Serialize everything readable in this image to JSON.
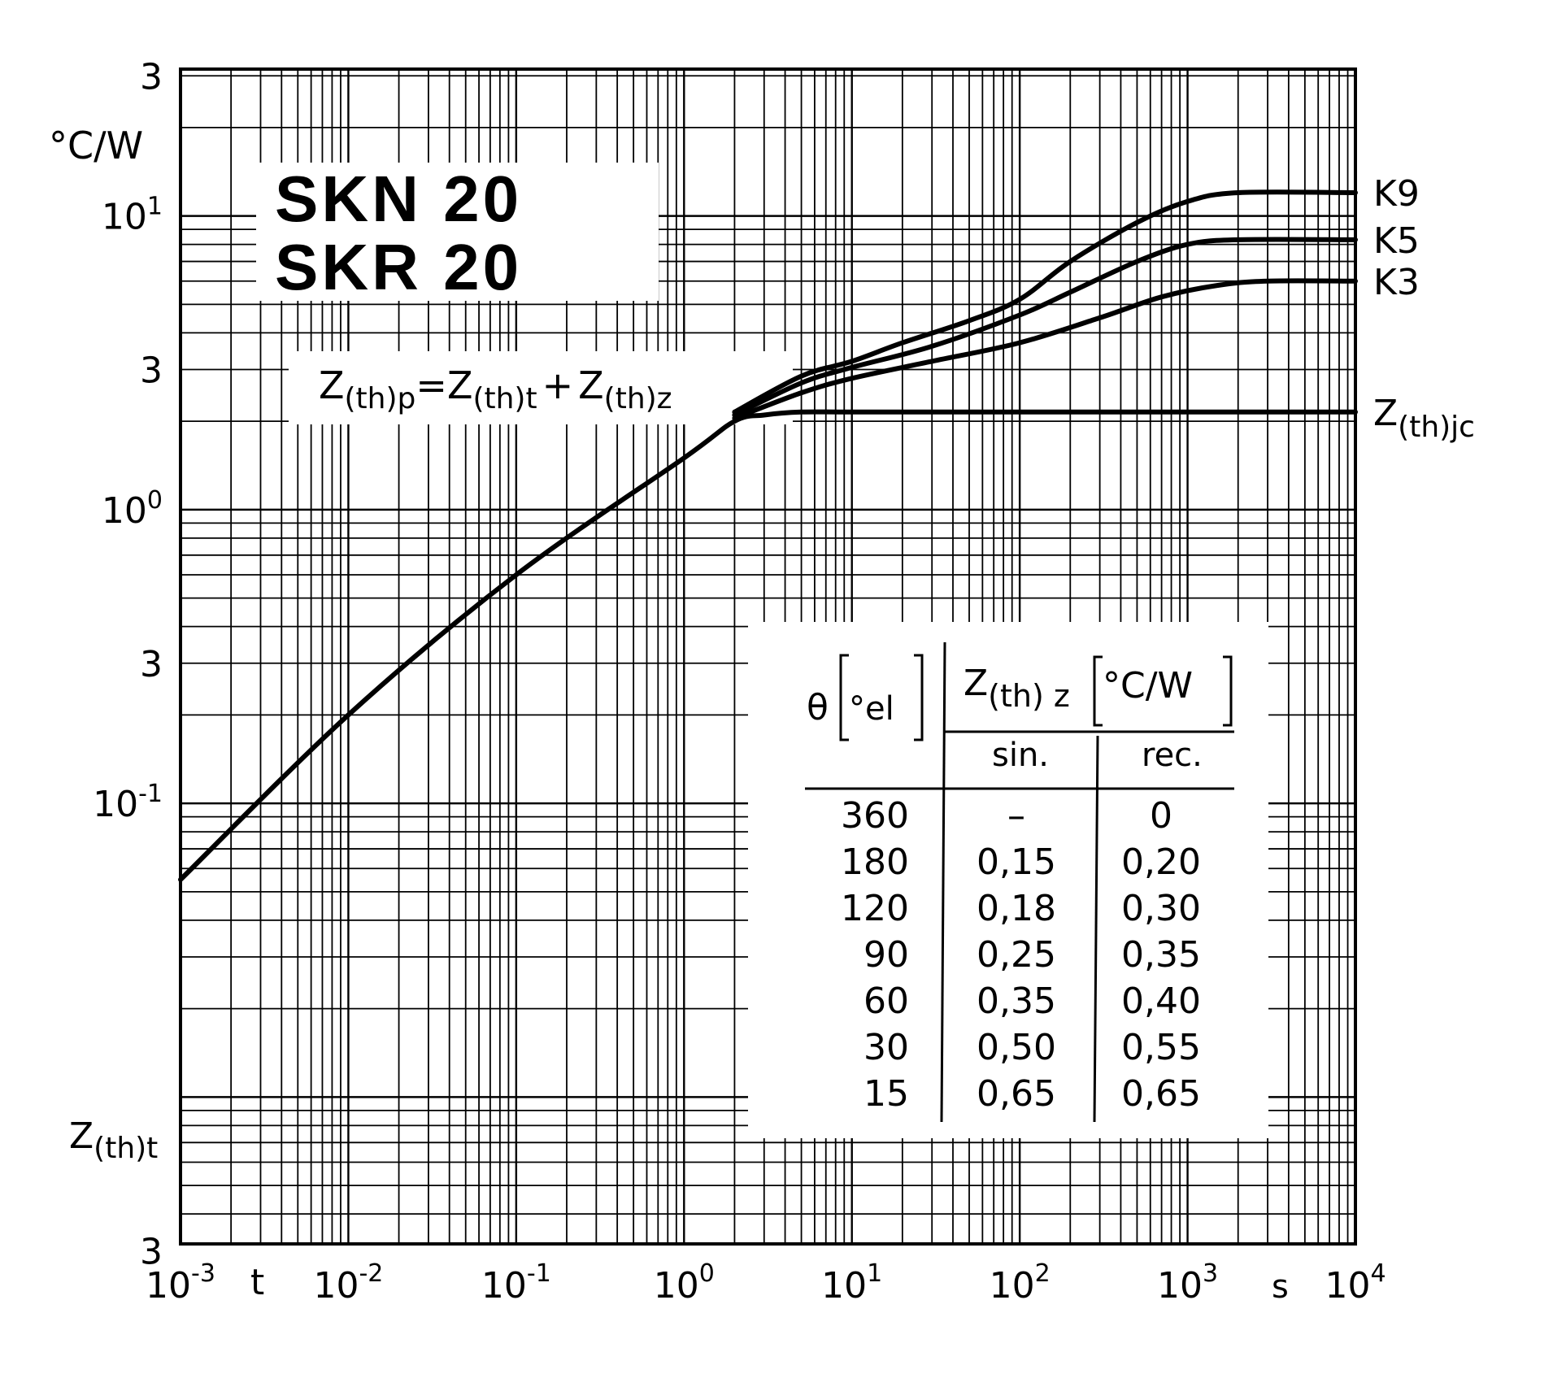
{
  "chart_data": {
    "type": "line",
    "title": [
      "SKN 20",
      "SKR 20"
    ],
    "formula": {
      "a": "Z",
      "a_sub": "(th)p",
      "eq": "=",
      "b": "Z",
      "b_sub": "(th)t",
      "plus": "+",
      "c": "Z",
      "c_sub": "(th)z"
    },
    "y_unit": "°C/W",
    "y_axis_label": {
      "main": "Z",
      "sub": "(th)t"
    },
    "x_axis_label": "t",
    "x_unit": "s",
    "x_scale": "log",
    "y_scale": "log",
    "xlim": [
      0.001,
      10000
    ],
    "ylim": [
      0.003,
      30
    ],
    "grid": true,
    "x_ticks": [
      {
        "base": "10",
        "exp": "-3",
        "value": 0.001
      },
      {
        "base": "10",
        "exp": "-2",
        "value": 0.01
      },
      {
        "base": "10",
        "exp": "-1",
        "value": 0.1
      },
      {
        "base": "10",
        "exp": "0",
        "value": 1
      },
      {
        "base": "10",
        "exp": "1",
        "value": 10
      },
      {
        "base": "10",
        "exp": "2",
        "value": 100
      },
      {
        "base": "10",
        "exp": "3",
        "value": 1000
      },
      {
        "base": "10",
        "exp": "4",
        "value": 10000
      }
    ],
    "y_ticks": [
      {
        "base": "3",
        "exp": "",
        "value": 30
      },
      {
        "base": "10",
        "exp": "1",
        "value": 10
      },
      {
        "base": "3",
        "exp": "",
        "value": 3
      },
      {
        "base": "10",
        "exp": "0",
        "value": 1
      },
      {
        "base": "3",
        "exp": "",
        "value": 0.3
      },
      {
        "base": "10",
        "exp": "-1",
        "value": 0.1
      },
      {
        "base": "3",
        "exp": "",
        "value": 0.003
      }
    ],
    "series": [
      {
        "name": "Z",
        "name_sub": "(th)jc",
        "x": [
          0.001,
          0.01,
          0.1,
          1,
          2,
          3,
          5,
          10,
          100,
          1000,
          10000
        ],
        "y": [
          0.055,
          0.2,
          0.6,
          1.5,
          2.0,
          2.1,
          2.15,
          2.15,
          2.15,
          2.15,
          2.15
        ]
      },
      {
        "name": "K3",
        "x": [
          2,
          5,
          10,
          30,
          100,
          300,
          700,
          1500,
          3000,
          10000
        ],
        "y": [
          2.05,
          2.5,
          2.8,
          3.2,
          3.7,
          4.5,
          5.3,
          5.8,
          6.0,
          6.0
        ]
      },
      {
        "name": "K5",
        "x": [
          2,
          5,
          10,
          30,
          100,
          200,
          500,
          1000,
          2000,
          10000
        ],
        "y": [
          2.1,
          2.7,
          3.05,
          3.6,
          4.6,
          5.5,
          7.0,
          8.0,
          8.3,
          8.3
        ]
      },
      {
        "name": "K9",
        "x": [
          2,
          5,
          10,
          20,
          50,
          100,
          200,
          500,
          1000,
          2000,
          10000
        ],
        "y": [
          2.15,
          2.85,
          3.2,
          3.7,
          4.4,
          5.2,
          7.0,
          9.5,
          11.2,
          12.0,
          12.0
        ]
      }
    ],
    "table": {
      "header_theta": "θ",
      "header_theta_unit": "°el",
      "header_z": {
        "main": "Z",
        "sub": "(th) z"
      },
      "header_z_unit": "°C/W",
      "col_sin": "sin.",
      "col_rec": "rec.",
      "rows": [
        {
          "theta": "360",
          "sin": "–",
          "rec": "0"
        },
        {
          "theta": "180",
          "sin": "0,15",
          "rec": "0,20"
        },
        {
          "theta": "120",
          "sin": "0,18",
          "rec": "0,30"
        },
        {
          "theta": "90",
          "sin": "0,25",
          "rec": "0,35"
        },
        {
          "theta": "60",
          "sin": "0,35",
          "rec": "0,40"
        },
        {
          "theta": "30",
          "sin": "0,50",
          "rec": "0,55"
        },
        {
          "theta": "15",
          "sin": "0,65",
          "rec": "0,65"
        }
      ]
    }
  }
}
